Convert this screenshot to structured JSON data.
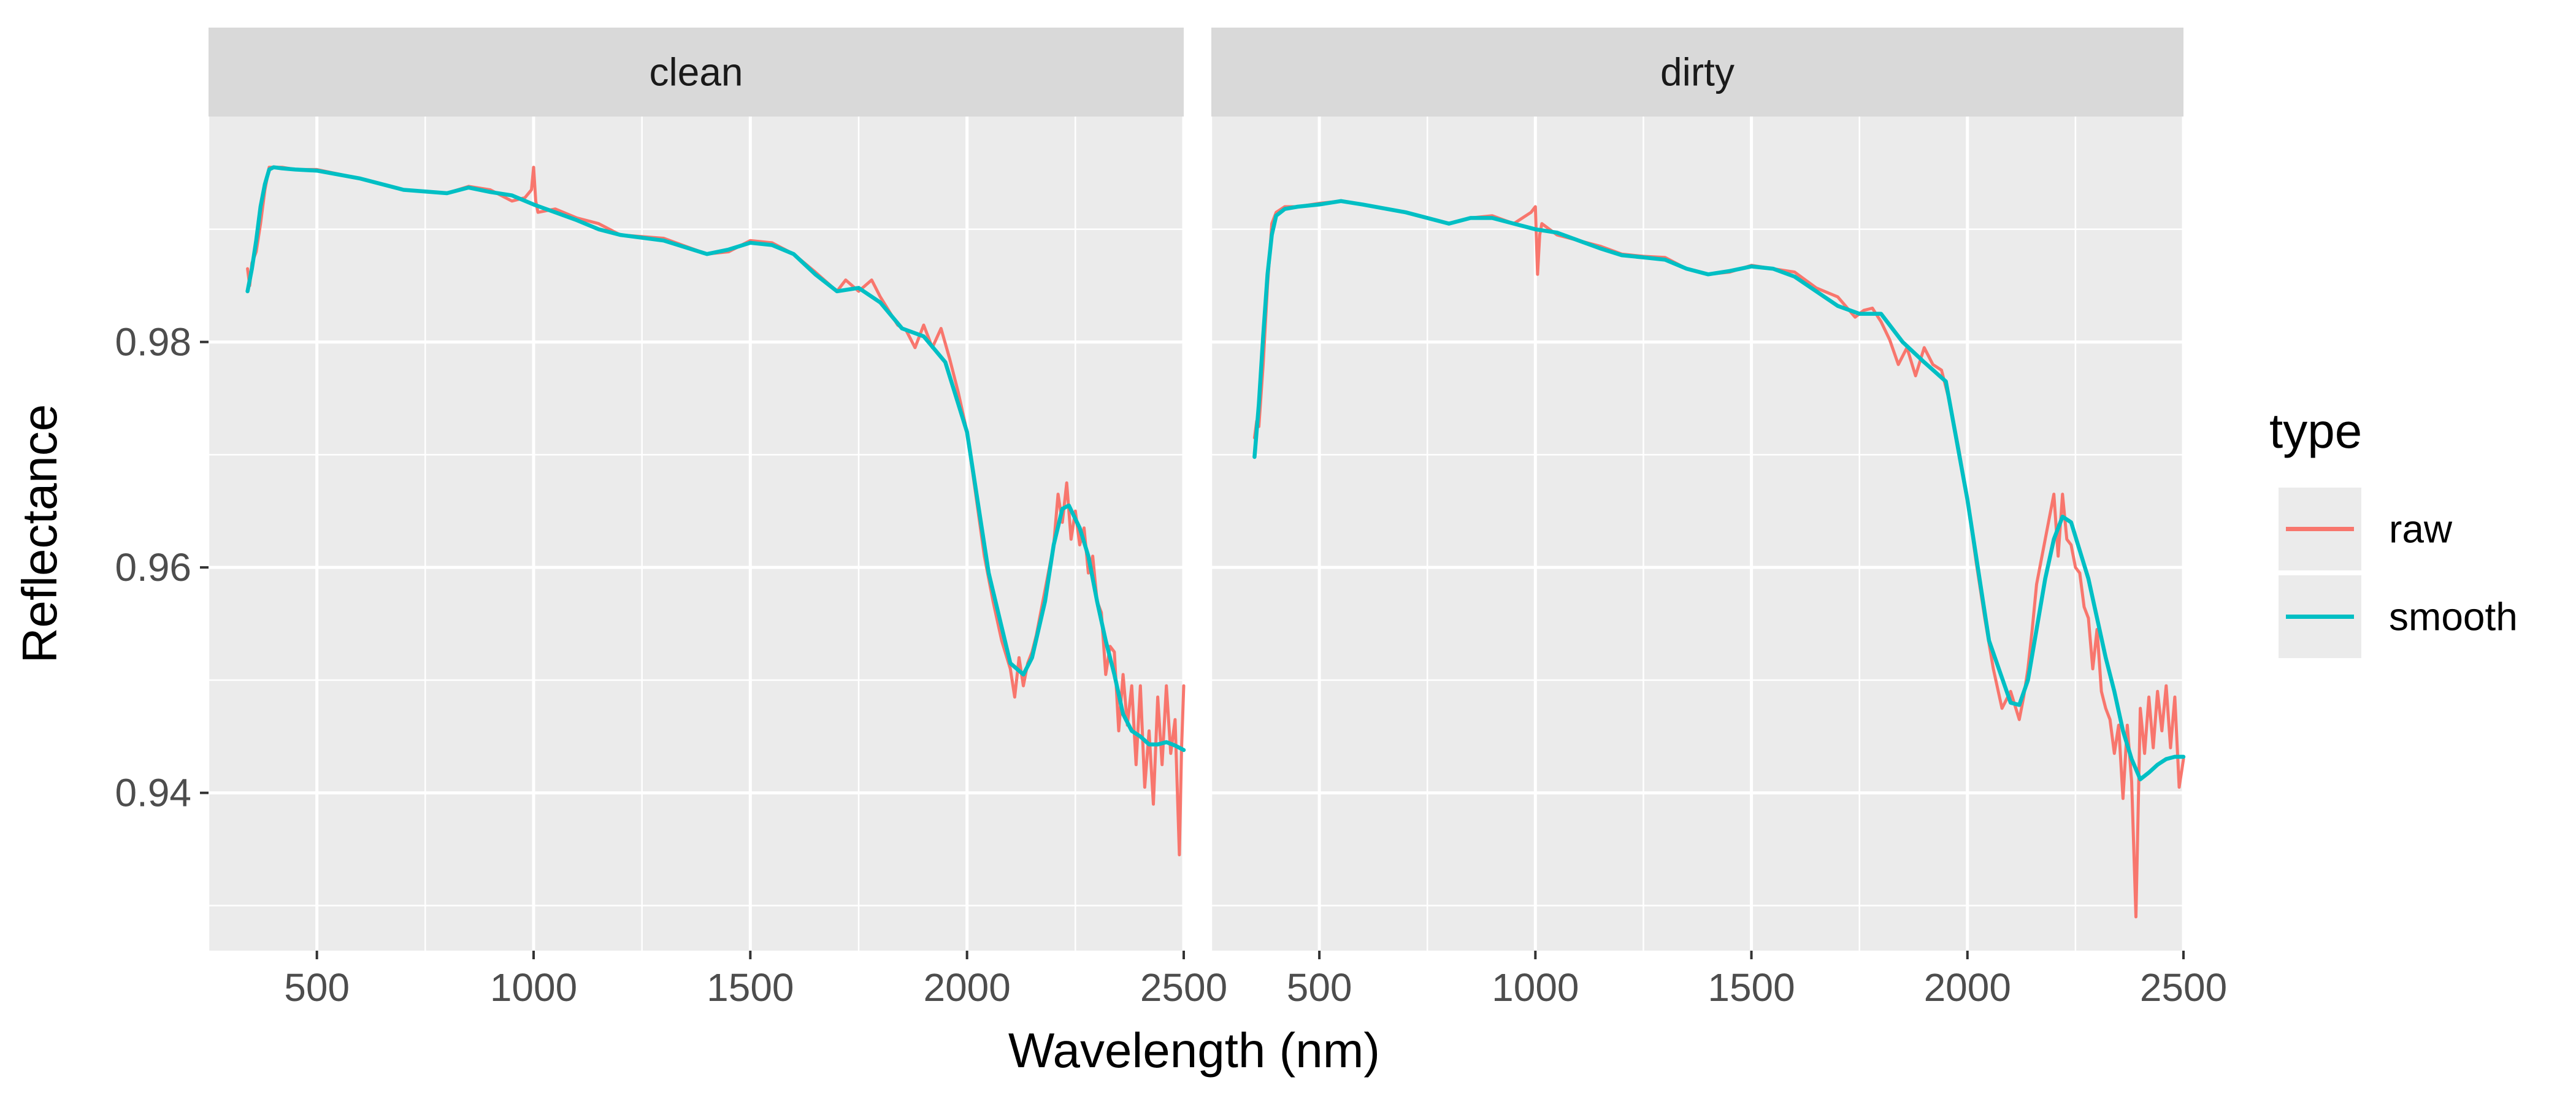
{
  "chart_data": {
    "type": "line",
    "title": "",
    "xlabel": "Wavelength (nm)",
    "ylabel": "Reflectance",
    "xlim": [
      250,
      2500
    ],
    "ylim": [
      0.926,
      1.0
    ],
    "x_ticks": [
      500,
      1000,
      1500,
      2000,
      2500
    ],
    "y_ticks": [
      0.94,
      0.96,
      0.98
    ],
    "grid": true,
    "legend": {
      "title": "type",
      "position": "right",
      "entries": [
        {
          "label": "raw",
          "color": "#F8766D"
        },
        {
          "label": "smooth",
          "color": "#00BFC4"
        }
      ]
    },
    "panels": [
      {
        "label": "clean",
        "series": [
          {
            "name": "raw",
            "color": "#F8766D",
            "x": [
              340,
              345,
              350,
              360,
              370,
              380,
              390,
              400,
              420,
              450,
              500,
              600,
              700,
              800,
              850,
              900,
              950,
              980,
              995,
              1000,
              1005,
              1010,
              1050,
              1100,
              1150,
              1200,
              1300,
              1350,
              1400,
              1450,
              1500,
              1550,
              1600,
              1650,
              1700,
              1720,
              1750,
              1780,
              1800,
              1840,
              1860,
              1880,
              1900,
              1920,
              1940,
              1960,
              1980,
              2000,
              2020,
              2040,
              2060,
              2080,
              2100,
              2110,
              2120,
              2130,
              2140,
              2150,
              2160,
              2180,
              2200,
              2210,
              2220,
              2230,
              2240,
              2250,
              2260,
              2270,
              2280,
              2290,
              2300,
              2310,
              2320,
              2330,
              2340,
              2350,
              2360,
              2370,
              2380,
              2390,
              2400,
              2410,
              2420,
              2430,
              2440,
              2450,
              2460,
              2470,
              2480,
              2490,
              2495,
              2500
            ],
            "y": [
              0.9865,
              0.985,
              0.987,
              0.988,
              0.9905,
              0.9935,
              0.9955,
              0.9955,
              0.9955,
              0.9953,
              0.9953,
              0.9945,
              0.9935,
              0.9932,
              0.9938,
              0.9935,
              0.9925,
              0.9928,
              0.9935,
              0.9955,
              0.9925,
              0.9915,
              0.9918,
              0.991,
              0.9905,
              0.9895,
              0.9892,
              0.9885,
              0.9878,
              0.988,
              0.989,
              0.9888,
              0.9878,
              0.9862,
              0.9845,
              0.9855,
              0.9845,
              0.9855,
              0.984,
              0.9815,
              0.981,
              0.9795,
              0.9815,
              0.9795,
              0.9812,
              0.9785,
              0.9755,
              0.972,
              0.9665,
              0.961,
              0.957,
              0.9535,
              0.951,
              0.9485,
              0.952,
              0.9495,
              0.9515,
              0.9525,
              0.954,
              0.958,
              0.962,
              0.9665,
              0.964,
              0.9675,
              0.9625,
              0.965,
              0.962,
              0.9635,
              0.9595,
              0.961,
              0.957,
              0.956,
              0.9505,
              0.953,
              0.9525,
              0.9455,
              0.9505,
              0.946,
              0.9495,
              0.9425,
              0.9495,
              0.9405,
              0.9455,
              0.939,
              0.9485,
              0.9425,
              0.9495,
              0.9435,
              0.9465,
              0.9345,
              0.944,
              0.9495
            ]
          },
          {
            "name": "smooth",
            "color": "#00BFC4",
            "x": [
              340,
              350,
              360,
              370,
              380,
              390,
              400,
              420,
              450,
              500,
              600,
              700,
              800,
              850,
              900,
              950,
              1000,
              1050,
              1100,
              1150,
              1200,
              1300,
              1350,
              1400,
              1450,
              1500,
              1550,
              1600,
              1650,
              1700,
              1750,
              1800,
              1850,
              1900,
              1950,
              2000,
              2050,
              2100,
              2130,
              2150,
              2180,
              2200,
              2220,
              2235,
              2260,
              2280,
              2300,
              2320,
              2340,
              2360,
              2380,
              2400,
              2420,
              2440,
              2460,
              2480,
              2500
            ],
            "y": [
              0.9845,
              0.9865,
              0.989,
              0.992,
              0.994,
              0.9953,
              0.9955,
              0.9954,
              0.9953,
              0.9952,
              0.9945,
              0.9935,
              0.9932,
              0.9937,
              0.9933,
              0.993,
              0.9922,
              0.9915,
              0.9908,
              0.99,
              0.9895,
              0.989,
              0.9884,
              0.9878,
              0.9882,
              0.9888,
              0.9886,
              0.9878,
              0.986,
              0.9845,
              0.9848,
              0.9835,
              0.9812,
              0.9805,
              0.9782,
              0.972,
              0.9595,
              0.9515,
              0.9505,
              0.952,
              0.957,
              0.962,
              0.9652,
              0.9655,
              0.9635,
              0.961,
              0.957,
              0.9535,
              0.9505,
              0.947,
              0.9455,
              0.945,
              0.9443,
              0.9443,
              0.9445,
              0.9442,
              0.9438
            ]
          }
        ]
      },
      {
        "label": "dirty",
        "series": [
          {
            "name": "raw",
            "color": "#F8766D",
            "x": [
              350,
              355,
              360,
              370,
              380,
              390,
              400,
              420,
              450,
              500,
              550,
              600,
              700,
              800,
              850,
              900,
              950,
              990,
              1000,
              1005,
              1010,
              1015,
              1050,
              1100,
              1150,
              1200,
              1250,
              1300,
              1350,
              1400,
              1450,
              1500,
              1550,
              1600,
              1650,
              1700,
              1740,
              1760,
              1780,
              1800,
              1820,
              1840,
              1860,
              1880,
              1900,
              1920,
              1940,
              1960,
              1980,
              2000,
              2020,
              2040,
              2060,
              2080,
              2100,
              2120,
              2130,
              2140,
              2150,
              2160,
              2180,
              2200,
              2210,
              2220,
              2230,
              2240,
              2250,
              2260,
              2270,
              2280,
              2290,
              2300,
              2310,
              2320,
              2330,
              2340,
              2350,
              2360,
              2370,
              2380,
              2390,
              2400,
              2410,
              2420,
              2430,
              2440,
              2450,
              2460,
              2470,
              2480,
              2490,
              2500
            ],
            "y": [
              0.9715,
              0.973,
              0.9725,
              0.978,
              0.985,
              0.9905,
              0.9915,
              0.992,
              0.992,
              0.9923,
              0.9925,
              0.9922,
              0.9915,
              0.9905,
              0.991,
              0.9912,
              0.9905,
              0.9915,
              0.992,
              0.986,
              0.9895,
              0.9905,
              0.9895,
              0.989,
              0.9885,
              0.9878,
              0.9876,
              0.9875,
              0.9865,
              0.986,
              0.9862,
              0.9868,
              0.9865,
              0.9862,
              0.9848,
              0.984,
              0.9822,
              0.9828,
              0.983,
              0.9818,
              0.9802,
              0.978,
              0.9795,
              0.977,
              0.9795,
              0.978,
              0.9775,
              0.9745,
              0.9705,
              0.966,
              0.9605,
              0.9555,
              0.951,
              0.9475,
              0.949,
              0.9465,
              0.9485,
              0.951,
              0.9545,
              0.9585,
              0.9625,
              0.9665,
              0.961,
              0.9665,
              0.9625,
              0.962,
              0.96,
              0.9595,
              0.9565,
              0.9555,
              0.951,
              0.9545,
              0.949,
              0.9475,
              0.9465,
              0.9435,
              0.946,
              0.9395,
              0.946,
              0.941,
              0.929,
              0.9475,
              0.9435,
              0.9485,
              0.944,
              0.949,
              0.9455,
              0.9495,
              0.944,
              0.9485,
              0.9405,
              0.943
            ]
          },
          {
            "name": "smooth",
            "color": "#00BFC4",
            "x": [
              350,
              360,
              370,
              380,
              390,
              400,
              420,
              450,
              500,
              550,
              600,
              700,
              800,
              850,
              900,
              950,
              1000,
              1050,
              1100,
              1150,
              1200,
              1250,
              1300,
              1350,
              1400,
              1450,
              1500,
              1550,
              1600,
              1650,
              1700,
              1750,
              1800,
              1850,
              1900,
              1950,
              2000,
              2050,
              2100,
              2120,
              2140,
              2160,
              2180,
              2200,
              2220,
              2240,
              2260,
              2280,
              2300,
              2320,
              2340,
              2360,
              2380,
              2400,
              2420,
              2440,
              2460,
              2480,
              2500
            ],
            "y": [
              0.9698,
              0.9745,
              0.9805,
              0.986,
              0.9895,
              0.9912,
              0.9918,
              0.992,
              0.9922,
              0.9925,
              0.9922,
              0.9915,
              0.9905,
              0.991,
              0.991,
              0.9905,
              0.99,
              0.9897,
              0.989,
              0.9883,
              0.9877,
              0.9875,
              0.9873,
              0.9865,
              0.986,
              0.9863,
              0.9867,
              0.9865,
              0.9858,
              0.9845,
              0.9832,
              0.9825,
              0.9825,
              0.98,
              0.9782,
              0.9765,
              0.966,
              0.9535,
              0.948,
              0.9478,
              0.95,
              0.9545,
              0.959,
              0.9625,
              0.9645,
              0.964,
              0.9615,
              0.959,
              0.9555,
              0.952,
              0.949,
              0.9455,
              0.943,
              0.9412,
              0.9418,
              0.9425,
              0.943,
              0.9432,
              0.9432
            ]
          }
        ]
      }
    ]
  }
}
